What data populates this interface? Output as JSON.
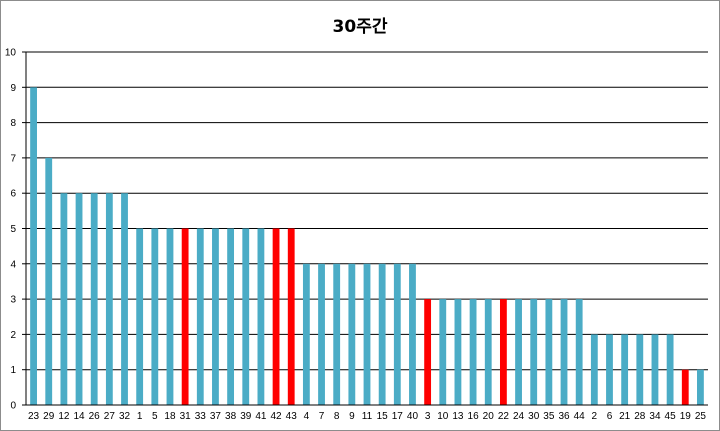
{
  "chart_data": {
    "type": "bar",
    "title": "30주간",
    "xlabel": "",
    "ylabel": "",
    "ylim": [
      0,
      10
    ],
    "yticks": [
      0,
      1,
      2,
      3,
      4,
      5,
      6,
      7,
      8,
      9,
      10
    ],
    "grid": true,
    "legend": "none",
    "colors": {
      "default": "#4bacc6",
      "highlight": "#ff0000",
      "grid": "#000000",
      "frame": "#8c8c8c"
    },
    "categories": [
      "23",
      "29",
      "12",
      "14",
      "26",
      "27",
      "32",
      "1",
      "5",
      "18",
      "31",
      "33",
      "37",
      "38",
      "39",
      "41",
      "42",
      "43",
      "4",
      "7",
      "8",
      "9",
      "11",
      "15",
      "17",
      "40",
      "3",
      "10",
      "13",
      "16",
      "20",
      "22",
      "24",
      "30",
      "35",
      "36",
      "44",
      "2",
      "6",
      "21",
      "28",
      "34",
      "45",
      "19",
      "25"
    ],
    "values": [
      9,
      7,
      6,
      6,
      6,
      6,
      6,
      5,
      5,
      5,
      5,
      5,
      5,
      5,
      5,
      5,
      5,
      5,
      4,
      4,
      4,
      4,
      4,
      4,
      4,
      4,
      3,
      3,
      3,
      3,
      3,
      3,
      3,
      3,
      3,
      3,
      3,
      2,
      2,
      2,
      2,
      2,
      2,
      1,
      1
    ],
    "highlighted": [
      "31",
      "42",
      "43",
      "3",
      "22",
      "19"
    ]
  }
}
